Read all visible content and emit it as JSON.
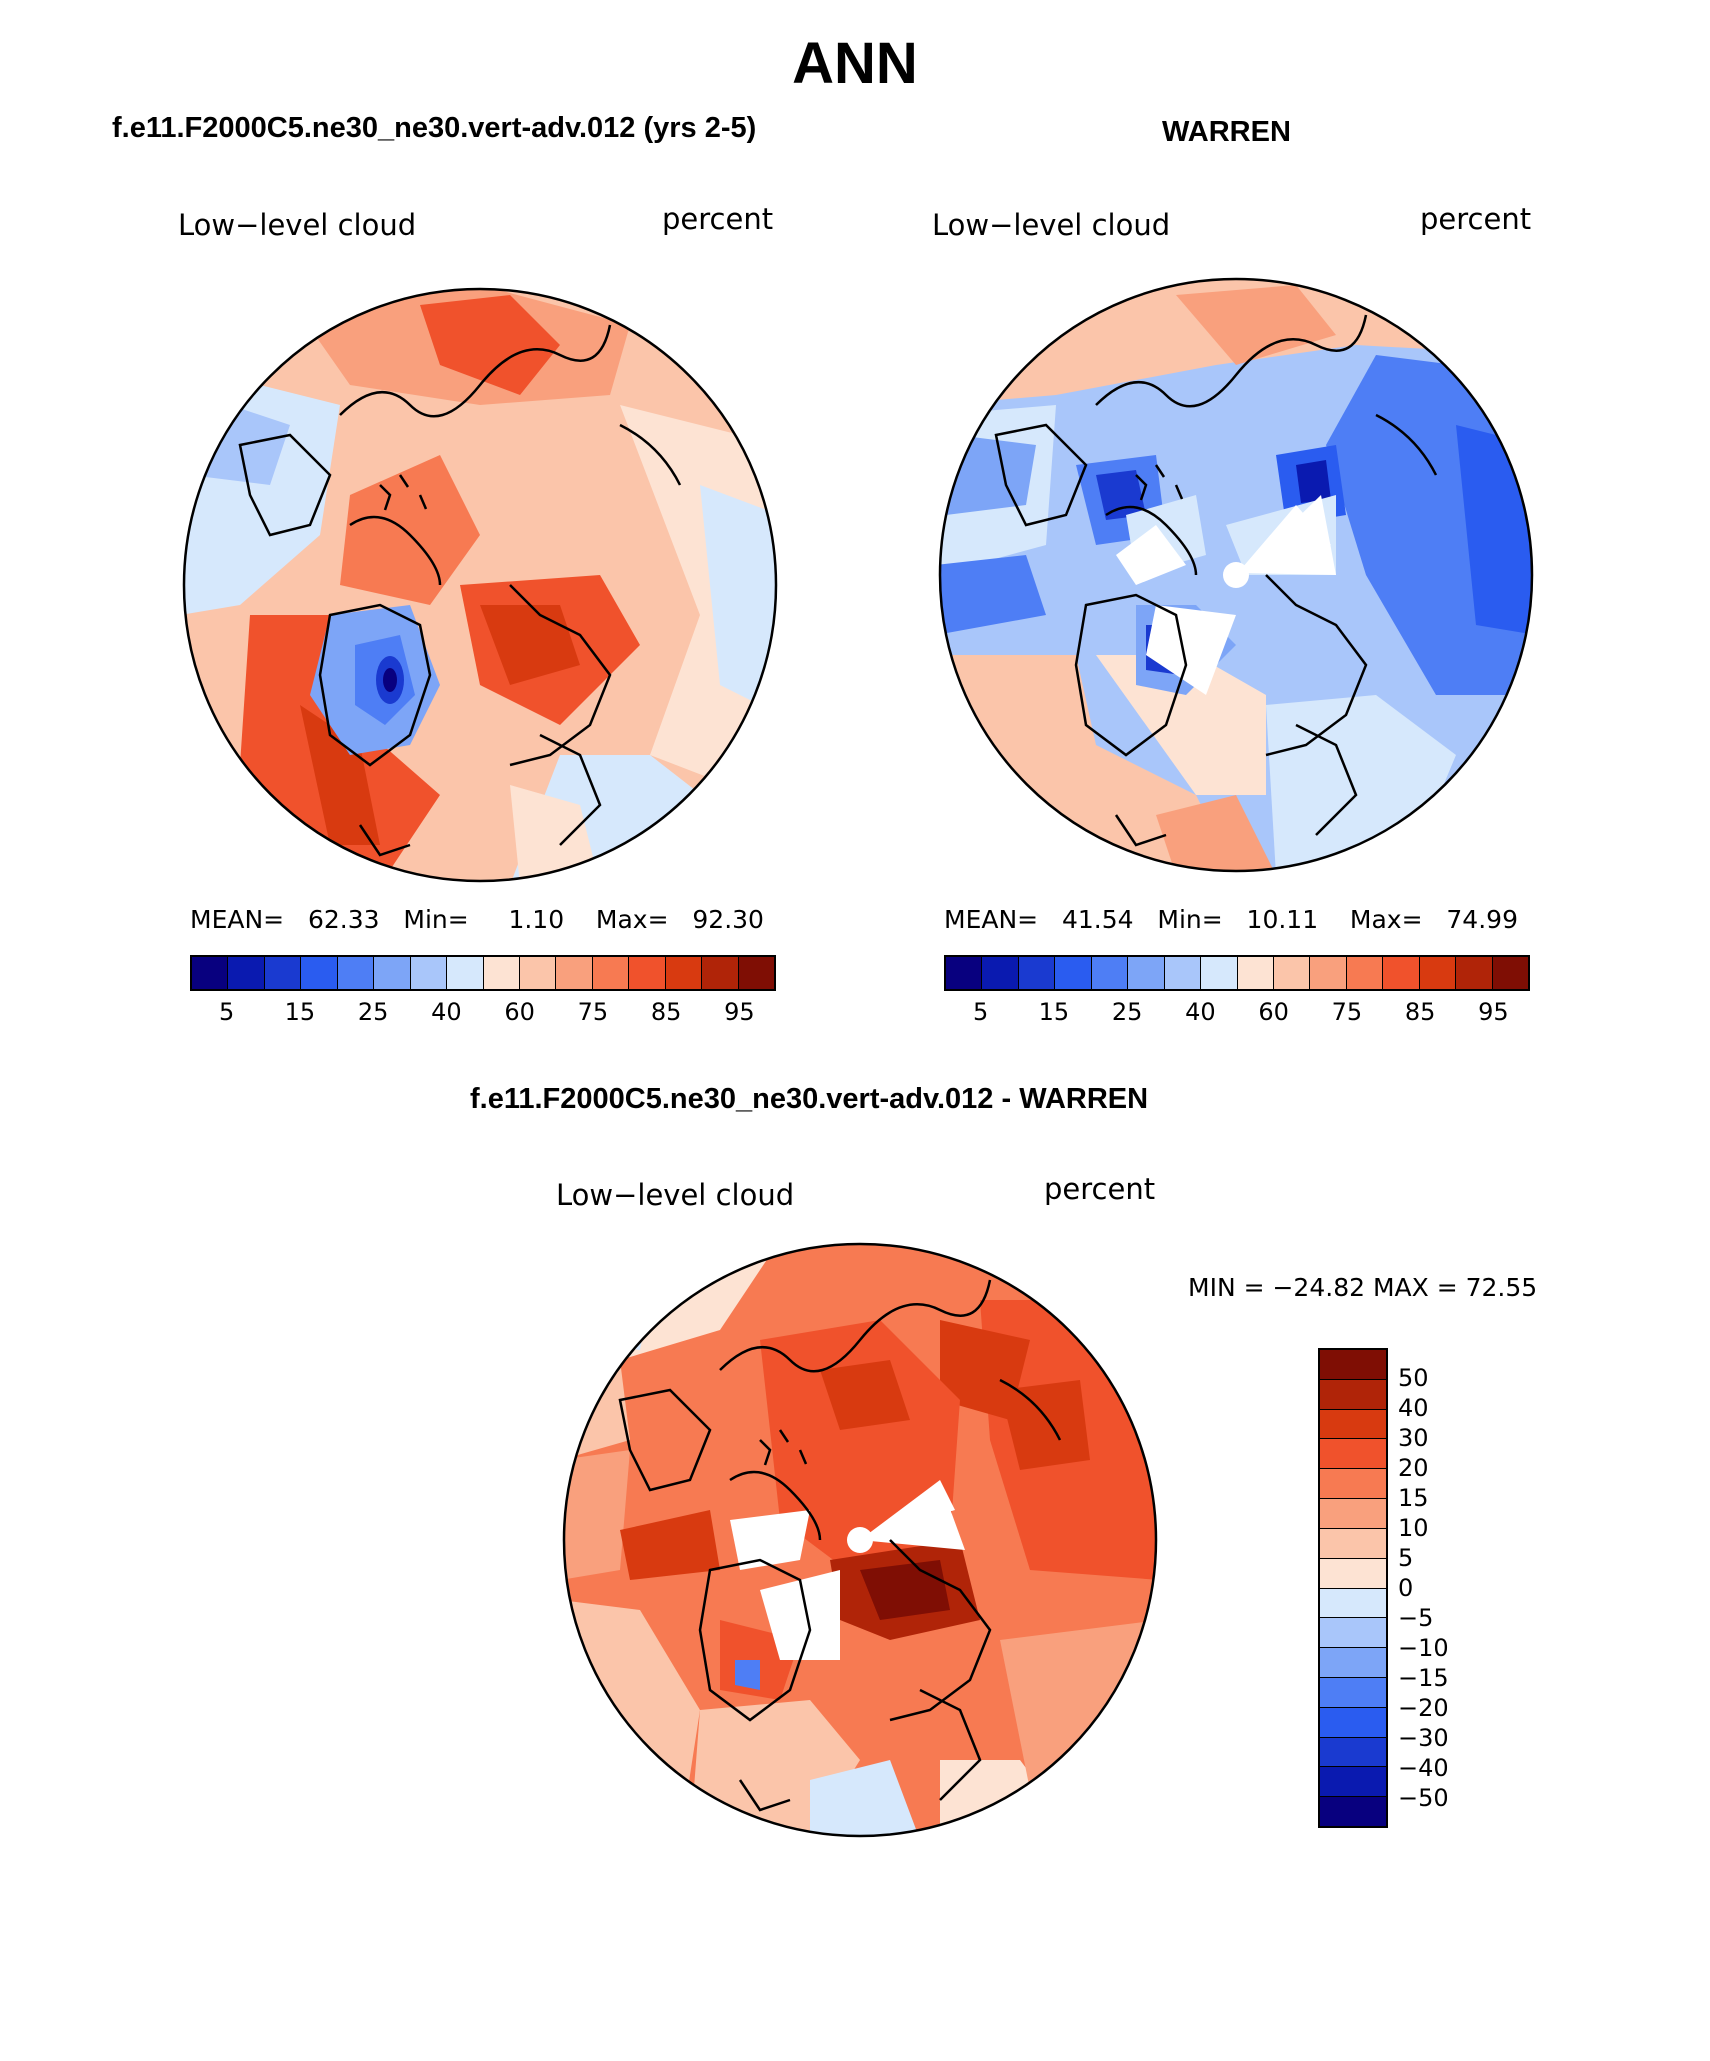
{
  "page": {
    "title": "ANN"
  },
  "panels": [
    {
      "id": "model",
      "case_title": "f.e11.F2000C5.ne30_ne30.vert-adv.012 (yrs 2-5)",
      "variable_label": "Low−level cloud",
      "units_label": "percent",
      "stats": {
        "mean_label": "MEAN=",
        "mean": "62.33",
        "min_label": "Min=",
        "min": "1.10",
        "max_label": "Max=",
        "max": "92.30"
      },
      "colorbar_ticks": [
        "5",
        "15",
        "25",
        "40",
        "60",
        "75",
        "85",
        "95"
      ]
    },
    {
      "id": "obs",
      "case_title": "WARREN",
      "variable_label": "Low−level cloud",
      "units_label": "percent",
      "stats": {
        "mean_label": "MEAN=",
        "mean": "41.54",
        "min_label": "Min=",
        "min": "10.11",
        "max_label": "Max=",
        "max": "74.99"
      },
      "colorbar_ticks": [
        "5",
        "15",
        "25",
        "40",
        "60",
        "75",
        "85",
        "95"
      ]
    }
  ],
  "difference_panel": {
    "case_title": "f.e11.F2000C5.ne30_ne30.vert-adv.012 - WARREN",
    "variable_label": "Low−level cloud",
    "units_label": "percent",
    "minmax_text": "MIN = −24.82 MAX =   72.55",
    "colorbar_ticks": [
      "50",
      "40",
      "30",
      "20",
      "15",
      "10",
      "5",
      "0",
      "−5",
      "−10",
      "−15",
      "−20",
      "−30",
      "−40",
      "−50"
    ]
  },
  "colors": {
    "main_scale": [
      "#08007f",
      "#0a1ab0",
      "#1a3ad0",
      "#2a5cf0",
      "#4e7ef5",
      "#7da5f7",
      "#a9c6fa",
      "#d6e8fc",
      "#fde3d3",
      "#fbc5aa",
      "#f9a07d",
      "#f77a52",
      "#f0522c",
      "#d83a10",
      "#b02408",
      "#7f0e04"
    ],
    "diff_scale": [
      "#7f0e04",
      "#b02408",
      "#d83a10",
      "#f0522c",
      "#f77a52",
      "#f9a07d",
      "#fbc5aa",
      "#fde3d3",
      "#d6e8fc",
      "#a9c6fa",
      "#7da5f7",
      "#4e7ef5",
      "#2a5cf0",
      "#1a3ad0",
      "#0a1ab0",
      "#08007f"
    ]
  }
}
